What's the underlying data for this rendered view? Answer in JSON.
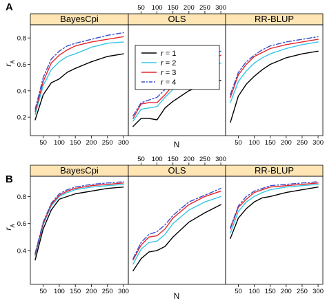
{
  "chart_data": [
    {
      "type": "line",
      "panel_label": "A",
      "x": [
        25,
        50,
        75,
        100,
        125,
        150,
        200,
        250,
        300
      ],
      "xlabel": "N",
      "ylabel": "r",
      "ylabel_sub": "A",
      "xticks": [
        50,
        100,
        150,
        200,
        250,
        300
      ],
      "yticks": [
        0.2,
        0.4,
        0.6,
        0.8
      ],
      "tick_labels": [
        "50",
        "100",
        "150",
        "200",
        "250",
        "300"
      ],
      "ytick_labels": [
        "0.2",
        "0.4",
        "0.6",
        "0.8"
      ],
      "xlim": [
        10,
        315
      ],
      "ylim": [
        0.06,
        0.9
      ],
      "legend": {
        "placement": "top-center",
        "entries": [
          {
            "var": "r",
            "eq": " = 1",
            "color": "#000000",
            "dash": "solid"
          },
          {
            "var": "r",
            "eq": " = 2",
            "color": "#33c6e6",
            "dash": "solid"
          },
          {
            "var": "r",
            "eq": " = 3",
            "color": "#e6232a",
            "dash": "solid"
          },
          {
            "var": "r",
            "eq": " = 4",
            "color": "#3b4dcc",
            "dash": "dashdot"
          }
        ]
      },
      "panels": [
        {
          "title": "BayesCpi",
          "series": [
            {
              "values": [
                0.18,
                0.37,
                0.46,
                0.49,
                0.54,
                0.57,
                0.62,
                0.66,
                0.68
              ]
            },
            {
              "values": [
                0.22,
                0.44,
                0.56,
                0.62,
                0.66,
                0.68,
                0.73,
                0.76,
                0.77
              ]
            },
            {
              "values": [
                0.24,
                0.47,
                0.61,
                0.67,
                0.71,
                0.74,
                0.77,
                0.79,
                0.81
              ]
            },
            {
              "values": [
                0.26,
                0.5,
                0.64,
                0.7,
                0.74,
                0.76,
                0.79,
                0.82,
                0.84
              ]
            }
          ]
        },
        {
          "title": "OLS",
          "series": [
            {
              "values": [
                0.13,
                0.19,
                0.19,
                0.18,
                0.27,
                0.32,
                0.4,
                0.45,
                0.48
              ]
            },
            {
              "values": [
                0.17,
                0.26,
                0.27,
                0.28,
                0.35,
                0.41,
                0.49,
                0.55,
                0.61
              ]
            },
            {
              "values": [
                0.19,
                0.3,
                0.31,
                0.31,
                0.37,
                0.44,
                0.53,
                0.6,
                0.67
              ]
            },
            {
              "values": [
                0.21,
                0.31,
                0.33,
                0.35,
                0.41,
                0.47,
                0.56,
                0.63,
                0.7
              ]
            }
          ]
        },
        {
          "title": "RR-BLUP",
          "series": [
            {
              "values": [
                0.16,
                0.36,
                0.45,
                0.51,
                0.56,
                0.6,
                0.65,
                0.68,
                0.7
              ]
            },
            {
              "values": [
                0.31,
                0.47,
                0.55,
                0.61,
                0.65,
                0.68,
                0.72,
                0.75,
                0.77
              ]
            },
            {
              "values": [
                0.35,
                0.52,
                0.6,
                0.66,
                0.69,
                0.72,
                0.75,
                0.77,
                0.79
              ]
            },
            {
              "values": [
                0.37,
                0.54,
                0.62,
                0.67,
                0.71,
                0.74,
                0.77,
                0.79,
                0.81
              ]
            }
          ]
        }
      ]
    },
    {
      "type": "line",
      "panel_label": "B",
      "x": [
        25,
        50,
        75,
        100,
        125,
        150,
        200,
        250,
        300
      ],
      "xlabel": "N",
      "ylabel": "r",
      "ylabel_sub": "A",
      "xticks": [
        50,
        100,
        150,
        200,
        250,
        300
      ],
      "yticks": [
        0.4,
        0.6,
        0.8
      ],
      "tick_labels": [
        "50",
        "100",
        "150",
        "200",
        "250",
        "300"
      ],
      "ytick_labels": [
        "0.4",
        "0.6",
        "0.8"
      ],
      "xlim": [
        10,
        315
      ],
      "ylim": [
        0.15,
        0.95
      ],
      "panels": [
        {
          "title": "BayesCpi",
          "series": [
            {
              "values": [
                0.33,
                0.56,
                0.7,
                0.78,
                0.8,
                0.82,
                0.84,
                0.86,
                0.87
              ]
            },
            {
              "values": [
                0.36,
                0.59,
                0.73,
                0.8,
                0.83,
                0.85,
                0.87,
                0.88,
                0.89
              ]
            },
            {
              "values": [
                0.37,
                0.6,
                0.74,
                0.81,
                0.84,
                0.86,
                0.88,
                0.89,
                0.9
              ]
            },
            {
              "values": [
                0.38,
                0.61,
                0.75,
                0.82,
                0.85,
                0.87,
                0.89,
                0.9,
                0.91
              ]
            }
          ]
        },
        {
          "title": "OLS",
          "series": [
            {
              "values": [
                0.25,
                0.34,
                0.39,
                0.4,
                0.43,
                0.5,
                0.61,
                0.68,
                0.74
              ]
            },
            {
              "values": [
                0.3,
                0.41,
                0.46,
                0.47,
                0.52,
                0.6,
                0.7,
                0.76,
                0.8
              ]
            },
            {
              "values": [
                0.33,
                0.44,
                0.5,
                0.51,
                0.56,
                0.64,
                0.74,
                0.8,
                0.84
              ]
            },
            {
              "values": [
                0.34,
                0.46,
                0.52,
                0.54,
                0.59,
                0.66,
                0.76,
                0.81,
                0.86
              ]
            }
          ]
        },
        {
          "title": "RR-BLUP",
          "series": [
            {
              "values": [
                0.49,
                0.64,
                0.71,
                0.76,
                0.79,
                0.8,
                0.83,
                0.85,
                0.87
              ]
            },
            {
              "values": [
                0.53,
                0.69,
                0.76,
                0.8,
                0.83,
                0.85,
                0.87,
                0.88,
                0.89
              ]
            },
            {
              "values": [
                0.56,
                0.72,
                0.78,
                0.83,
                0.85,
                0.87,
                0.88,
                0.89,
                0.9
              ]
            },
            {
              "values": [
                0.57,
                0.73,
                0.8,
                0.84,
                0.86,
                0.88,
                0.89,
                0.9,
                0.91
              ]
            }
          ]
        }
      ]
    }
  ]
}
